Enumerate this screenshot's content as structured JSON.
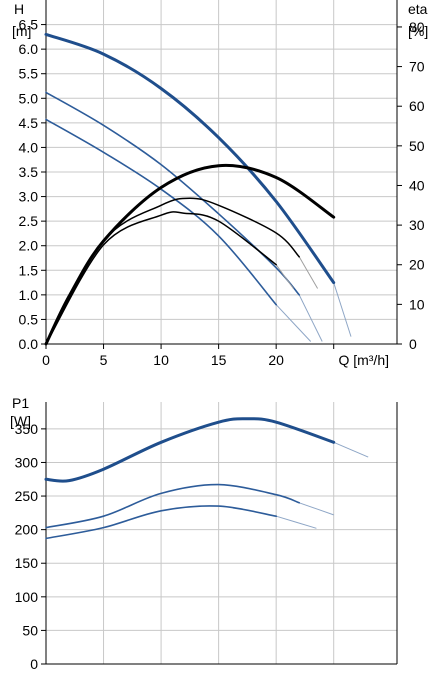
{
  "chart_data": [
    {
      "type": "line",
      "title": "",
      "xlabel": "Q [m³/h]",
      "ylabel": "H\n[m]",
      "y2label": "eta\n[%]",
      "x_ticks": [
        0,
        5,
        10,
        15,
        20
      ],
      "y_ticks": [
        0.0,
        0.5,
        1.0,
        1.5,
        2.0,
        2.5,
        3.0,
        3.5,
        4.0,
        4.5,
        5.0,
        5.5,
        6.0,
        6.5
      ],
      "y2_ticks": [
        0,
        10,
        20,
        30,
        40,
        50,
        60,
        70,
        80
      ],
      "xlim": [
        0,
        30.5
      ],
      "ylim": [
        0,
        7.0
      ],
      "y2lim": [
        0,
        86.8
      ],
      "grid": true,
      "head_series": [
        {
          "color": "#1f4e8c",
          "width": 3,
          "points": [
            [
              0,
              6.3
            ],
            [
              5,
              5.9
            ],
            [
              10,
              5.2
            ],
            [
              15,
              4.2
            ],
            [
              20,
              2.9
            ],
            [
              25,
              1.25
            ]
          ],
          "ext": [
            [
              25,
              1.25
            ],
            [
              26.5,
              0.15
            ]
          ]
        },
        {
          "color": "#2d5c9a",
          "width": 1.6,
          "points": [
            [
              0,
              5.12
            ],
            [
              5,
              4.45
            ],
            [
              10,
              3.65
            ],
            [
              15,
              2.65
            ],
            [
              20,
              1.55
            ],
            [
              22,
              1.0
            ]
          ],
          "ext": [
            [
              22,
              1.0
            ],
            [
              24,
              0.05
            ]
          ]
        },
        {
          "color": "#2d5c9a",
          "width": 1.6,
          "points": [
            [
              0,
              4.57
            ],
            [
              5,
              3.9
            ],
            [
              10,
              3.15
            ],
            [
              15,
              2.2
            ],
            [
              20,
              0.8
            ]
          ],
          "ext": [
            [
              20,
              0.8
            ],
            [
              23,
              0.05
            ]
          ]
        }
      ],
      "eta_series": [
        {
          "color": "#000000",
          "width": 3,
          "points": [
            [
              0,
              0
            ],
            [
              2,
              12
            ],
            [
              5,
              26
            ],
            [
              10,
              39.5
            ],
            [
              15,
              45
            ],
            [
              20,
              42
            ],
            [
              25,
              32
            ]
          ]
        },
        {
          "color": "#000000",
          "width": 1.5,
          "points": [
            [
              0,
              0
            ],
            [
              5,
              26
            ],
            [
              10,
              35
            ],
            [
              12.5,
              36.8
            ],
            [
              15,
              35
            ],
            [
              20,
              28
            ],
            [
              22,
              22
            ]
          ],
          "ext": [
            [
              22,
              22
            ],
            [
              23.6,
              14
            ]
          ]
        },
        {
          "color": "#000000",
          "width": 1.5,
          "points": [
            [
              0,
              0
            ],
            [
              5,
              25
            ],
            [
              10,
              32.5
            ],
            [
              12,
              33
            ],
            [
              15,
              31
            ],
            [
              20,
              20
            ]
          ],
          "ext": [
            [
              20,
              20
            ],
            [
              21.5,
              14
            ]
          ]
        }
      ]
    },
    {
      "type": "line",
      "title": "",
      "xlabel": "",
      "ylabel": "P1\n[W]",
      "y_ticks": [
        0,
        50,
        100,
        150,
        200,
        250,
        300,
        350
      ],
      "xlim": [
        0,
        30.5
      ],
      "ylim": [
        0,
        390
      ],
      "grid": true,
      "series": [
        {
          "color": "#1f4e8c",
          "width": 3,
          "points": [
            [
              0,
              275
            ],
            [
              2,
              273
            ],
            [
              5,
              290
            ],
            [
              10,
              330
            ],
            [
              15,
              360
            ],
            [
              17.5,
              365
            ],
            [
              20,
              360
            ],
            [
              25,
              330
            ]
          ],
          "ext": [
            [
              25,
              330
            ],
            [
              28,
              308
            ]
          ]
        },
        {
          "color": "#2d5c9a",
          "width": 1.6,
          "points": [
            [
              0,
              203
            ],
            [
              5,
              220
            ],
            [
              10,
              254
            ],
            [
              15,
              267
            ],
            [
              20,
              252
            ],
            [
              22,
              240
            ]
          ],
          "ext": [
            [
              22,
              240
            ],
            [
              25,
              222
            ]
          ]
        },
        {
          "color": "#2d5c9a",
          "width": 1.6,
          "points": [
            [
              0,
              187
            ],
            [
              5,
              203
            ],
            [
              10,
              228
            ],
            [
              15,
              235
            ],
            [
              20,
              220
            ]
          ],
          "ext": [
            [
              20,
              220
            ],
            [
              23.5,
              202
            ]
          ]
        }
      ]
    }
  ]
}
